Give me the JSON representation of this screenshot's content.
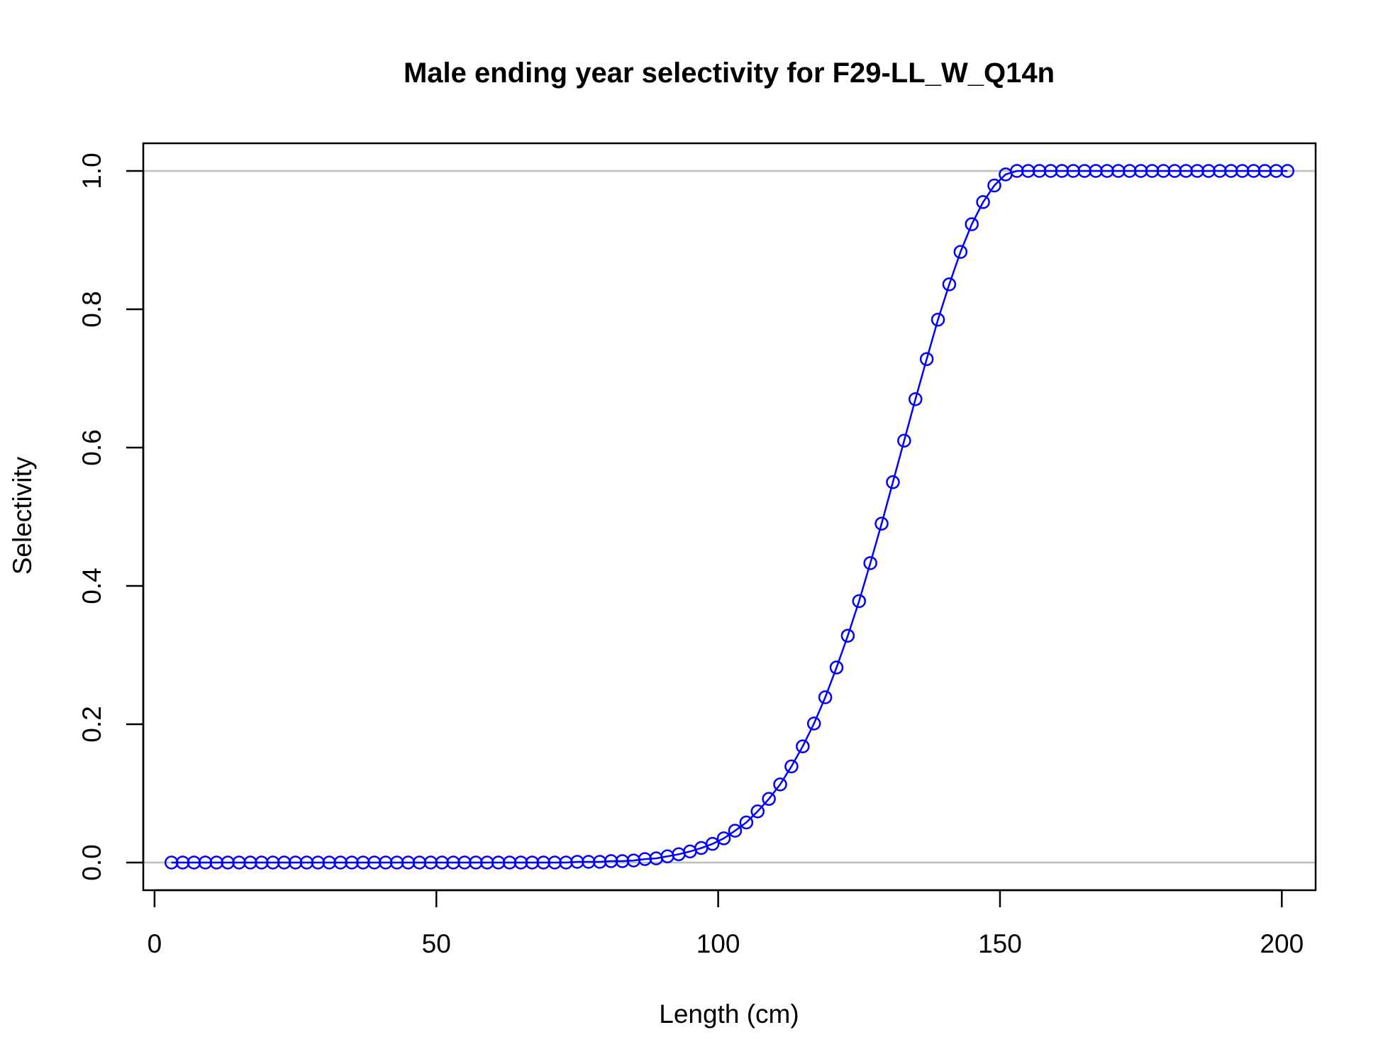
{
  "chart_data": {
    "type": "line",
    "title": "Male ending year selectivity for F29-LL_W_Q14n",
    "xlabel": "Length (cm)",
    "ylabel": "Selectivity",
    "xlim": [
      -2,
      206
    ],
    "ylim": [
      -0.04,
      1.04
    ],
    "x_ticks": [
      0,
      50,
      100,
      150,
      200
    ],
    "x_tick_labels": [
      "0",
      "50",
      "100",
      "150",
      "200"
    ],
    "y_ticks": [
      0.0,
      0.2,
      0.4,
      0.6,
      0.8,
      1.0
    ],
    "y_tick_labels": [
      "0.0",
      "0.2",
      "0.4",
      "0.6",
      "0.8",
      "1.0"
    ],
    "reference_lines_y": [
      0,
      1
    ],
    "grid": false,
    "series": [
      {
        "marker": "open-circle",
        "color": "#0000ff",
        "x": [
          3,
          5,
          7,
          9,
          11,
          13,
          15,
          17,
          19,
          21,
          23,
          25,
          27,
          29,
          31,
          33,
          35,
          37,
          39,
          41,
          43,
          45,
          47,
          49,
          51,
          53,
          55,
          57,
          59,
          61,
          63,
          65,
          67,
          69,
          71,
          73,
          75,
          77,
          79,
          81,
          83,
          85,
          87,
          89,
          91,
          93,
          95,
          97,
          99,
          101,
          103,
          105,
          107,
          109,
          111,
          113,
          115,
          117,
          119,
          121,
          123,
          125,
          127,
          129,
          131,
          133,
          135,
          137,
          139,
          141,
          143,
          145,
          147,
          149,
          151,
          153,
          155,
          157,
          159,
          161,
          163,
          165,
          167,
          169,
          171,
          173,
          175,
          177,
          179,
          181,
          183,
          185,
          187,
          189,
          191,
          193,
          195,
          197,
          199,
          201
        ],
        "values": [
          0,
          0,
          0,
          0,
          0,
          0,
          0,
          0,
          0,
          0,
          0,
          0,
          0,
          0,
          0,
          0,
          0,
          0,
          0,
          0,
          0,
          0,
          0,
          0,
          0,
          0,
          0,
          0,
          0,
          0,
          0,
          0,
          0,
          0,
          0,
          0,
          0.001,
          0.001,
          0.001,
          0.002,
          0.002,
          0.003,
          0.005,
          0.006,
          0.009,
          0.012,
          0.016,
          0.021,
          0.027,
          0.035,
          0.046,
          0.058,
          0.074,
          0.092,
          0.113,
          0.139,
          0.168,
          0.201,
          0.239,
          0.282,
          0.328,
          0.378,
          0.433,
          0.49,
          0.55,
          0.61,
          0.67,
          0.728,
          0.785,
          0.836,
          0.883,
          0.923,
          0.955,
          0.979,
          0.995,
          1,
          1,
          1,
          1,
          1,
          1,
          1,
          1,
          1,
          1,
          1,
          1,
          1,
          1,
          1,
          1,
          1,
          1,
          1,
          1,
          1,
          1,
          1,
          1,
          1
        ]
      }
    ]
  }
}
